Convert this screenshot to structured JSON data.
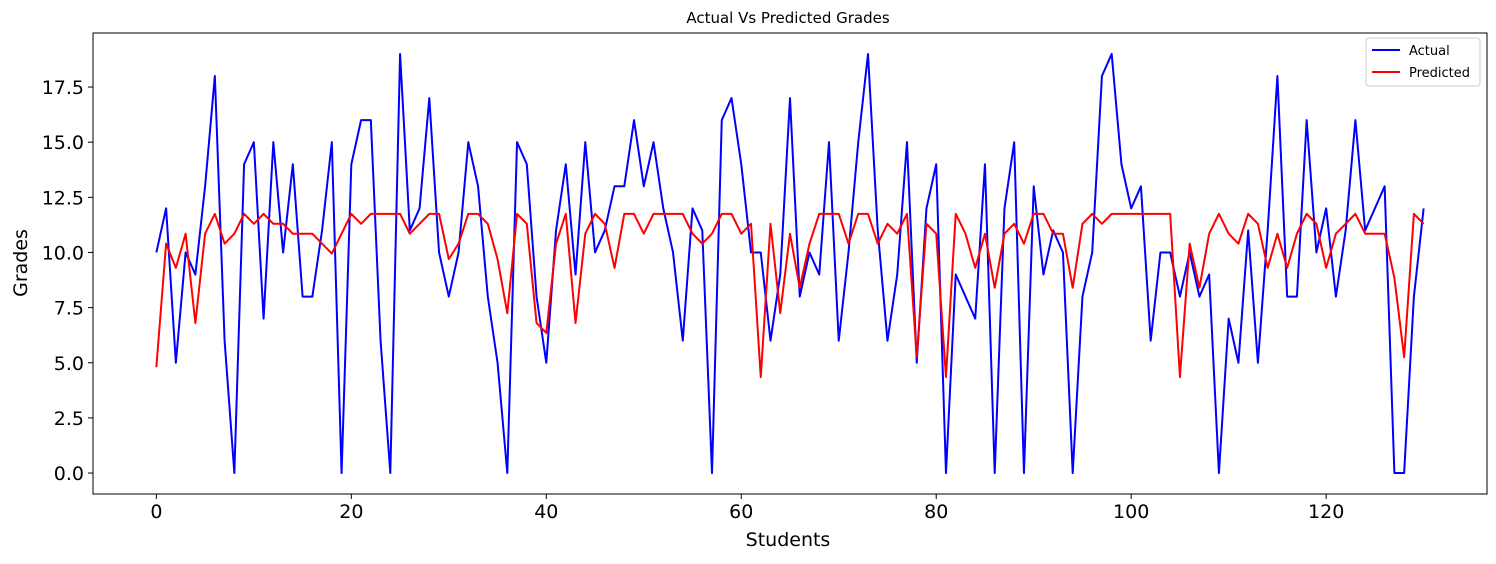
{
  "chart_data": {
    "type": "line",
    "title": "Actual Vs Predicted Grades",
    "xlabel": "Students",
    "ylabel": "Grades",
    "xlim": [
      -6.5,
      136.5
    ],
    "ylim": [
      -0.95,
      19.95
    ],
    "xticks": [
      0,
      20,
      40,
      60,
      80,
      100,
      120
    ],
    "xtick_labels": [
      "0",
      "20",
      "40",
      "60",
      "80",
      "100",
      "120"
    ],
    "yticks": [
      0,
      2.5,
      5,
      7.5,
      10,
      12.5,
      15,
      17.5
    ],
    "ytick_labels": [
      "0.0",
      "2.5",
      "5.0",
      "7.5",
      "10.0",
      "12.5",
      "15.0",
      "17.5"
    ],
    "grid": false,
    "legend_position": "top-right",
    "colors": {
      "Actual": "#0000ff",
      "Predicted": "#ff0000"
    },
    "x": [
      0,
      1,
      2,
      3,
      4,
      5,
      6,
      7,
      8,
      9,
      10,
      11,
      12,
      13,
      14,
      15,
      16,
      17,
      18,
      19,
      20,
      21,
      22,
      23,
      24,
      25,
      26,
      27,
      28,
      29,
      30,
      31,
      32,
      33,
      34,
      35,
      36,
      37,
      38,
      39,
      40,
      41,
      42,
      43,
      44,
      45,
      46,
      47,
      48,
      49,
      50,
      51,
      52,
      53,
      54,
      55,
      56,
      57,
      58,
      59,
      60,
      61,
      62,
      63,
      64,
      65,
      66,
      67,
      68,
      69,
      70,
      71,
      72,
      73,
      74,
      75,
      76,
      77,
      78,
      79,
      80,
      81,
      82,
      83,
      84,
      85,
      86,
      87,
      88,
      89,
      90,
      91,
      92,
      93,
      94,
      95,
      96,
      97,
      98,
      99,
      100,
      101,
      102,
      103,
      104,
      105,
      106,
      107,
      108,
      109,
      110,
      111,
      112,
      113,
      114,
      115,
      116,
      117,
      118,
      119,
      120,
      121,
      122,
      123,
      124,
      125,
      126,
      127,
      128,
      129,
      130
    ],
    "series": [
      {
        "name": "Actual",
        "values": [
          10,
          12,
          5,
          10,
          9,
          13,
          18,
          6,
          0,
          14,
          15,
          7,
          15,
          10,
          14,
          8,
          8,
          11,
          15,
          0,
          14,
          16,
          16,
          6,
          0,
          19,
          11,
          12,
          17,
          10,
          8,
          10,
          15,
          13,
          8,
          5,
          0,
          15,
          14,
          8,
          5,
          11,
          14,
          9,
          15,
          10,
          11,
          13,
          13,
          16,
          13,
          15,
          12,
          10,
          6,
          12,
          11,
          0,
          16,
          17,
          14,
          10,
          10,
          6,
          9,
          17,
          8,
          10,
          9,
          15,
          6,
          10,
          15,
          19,
          11,
          6,
          9,
          15,
          5,
          12,
          14,
          0,
          9,
          8,
          7,
          14,
          0,
          12,
          15,
          0,
          13,
          9,
          11,
          10,
          0,
          8,
          10,
          18,
          19,
          14,
          12,
          13,
          6,
          10,
          10,
          8,
          10,
          8,
          9,
          0,
          7,
          5,
          11,
          5,
          11,
          18,
          8,
          8,
          16,
          10,
          12,
          8,
          11,
          16,
          11,
          12,
          13,
          0,
          0,
          8,
          12
        ]
      },
      {
        "name": "Predicted",
        "values": [
          4.8,
          10.4,
          9.3,
          10.85,
          6.8,
          10.85,
          11.75,
          10.4,
          10.85,
          11.75,
          11.3,
          11.75,
          11.3,
          11.3,
          10.85,
          10.85,
          10.85,
          10.4,
          9.95,
          10.85,
          11.75,
          11.3,
          11.75,
          11.75,
          11.75,
          11.75,
          10.85,
          11.3,
          11.75,
          11.75,
          9.7,
          10.4,
          11.75,
          11.75,
          11.3,
          9.7,
          7.25,
          11.75,
          11.3,
          6.8,
          6.35,
          10.4,
          11.75,
          6.8,
          10.85,
          11.75,
          11.3,
          9.3,
          11.75,
          11.75,
          10.85,
          11.75,
          11.75,
          11.75,
          11.75,
          10.85,
          10.4,
          10.85,
          11.75,
          11.75,
          10.85,
          11.3,
          4.35,
          11.3,
          7.25,
          10.85,
          8.4,
          10.4,
          11.75,
          11.75,
          11.75,
          10.4,
          11.75,
          11.75,
          10.4,
          11.3,
          10.85,
          11.75,
          5.25,
          11.3,
          10.85,
          4.35,
          11.75,
          10.85,
          9.3,
          10.85,
          8.4,
          10.85,
          11.3,
          10.4,
          11.75,
          11.75,
          10.85,
          10.85,
          8.4,
          11.3,
          11.75,
          11.3,
          11.75,
          11.75,
          11.75,
          11.75,
          11.75,
          11.75,
          11.75,
          4.35,
          10.4,
          8.4,
          10.85,
          11.75,
          10.85,
          10.4,
          11.75,
          11.3,
          9.3,
          10.85,
          9.3,
          10.85,
          11.75,
          11.3,
          9.3,
          10.85,
          11.3,
          11.75,
          10.85,
          10.85,
          10.85,
          8.85,
          5.25,
          11.75,
          11.3
        ]
      }
    ]
  }
}
